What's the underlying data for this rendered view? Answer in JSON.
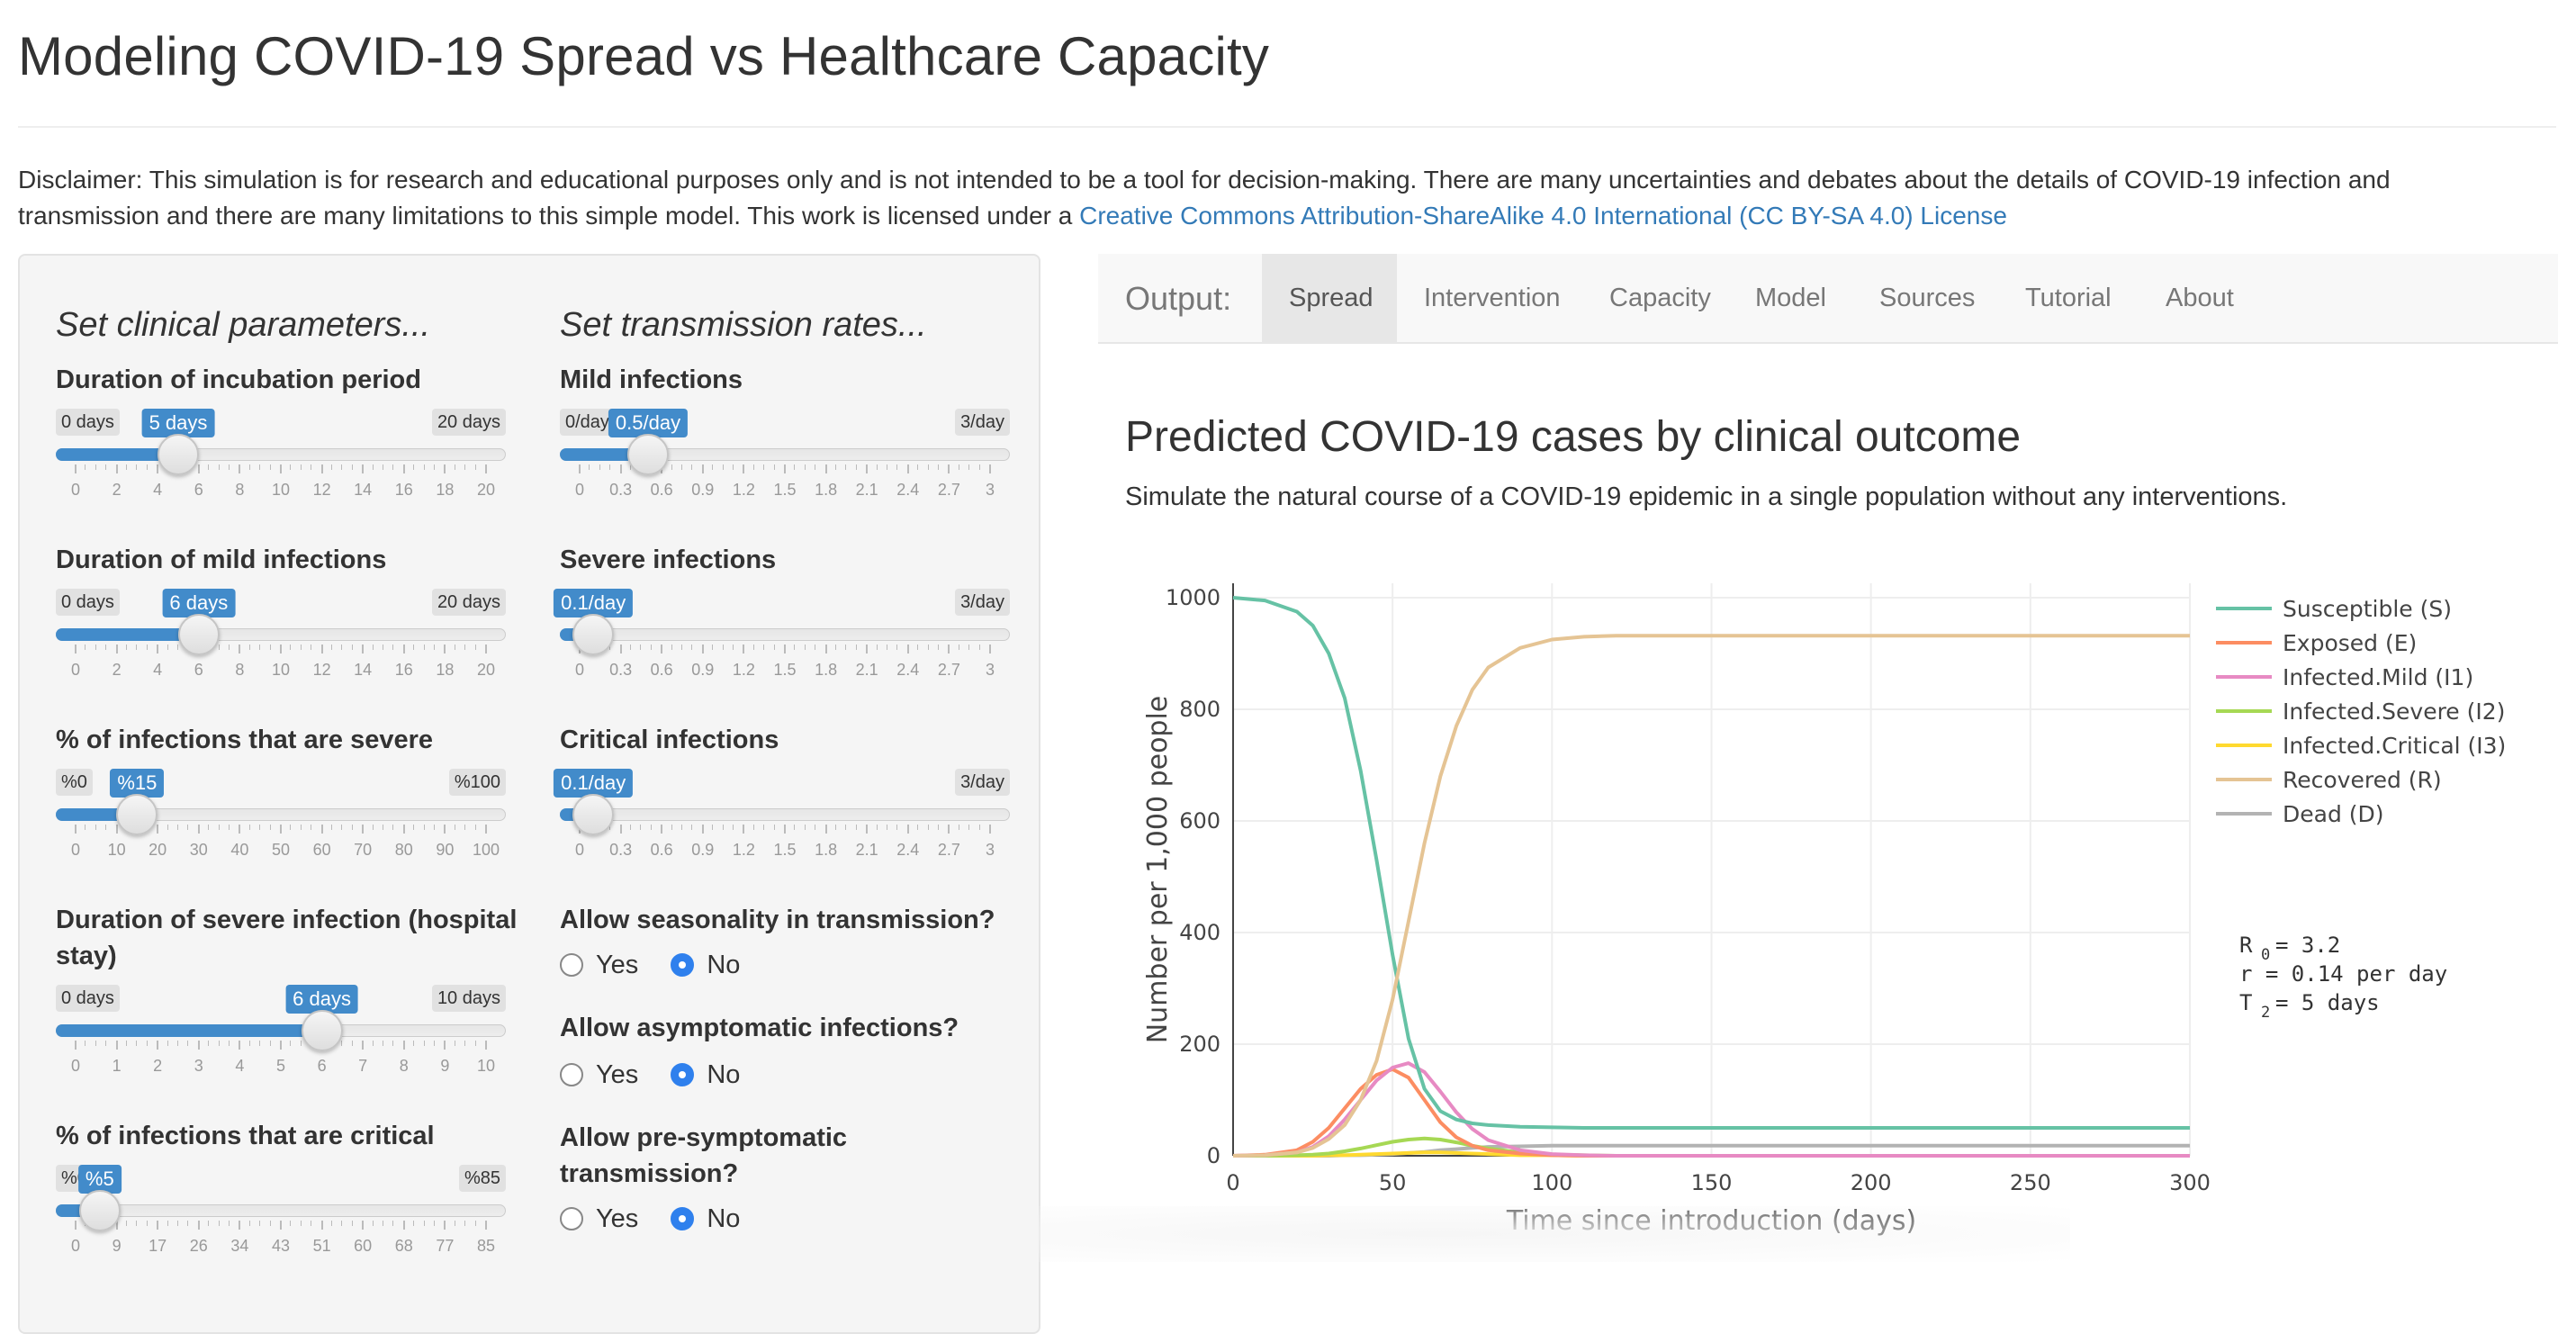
{
  "page": {
    "title": "Modeling COVID-19 Spread vs Healthcare Capacity",
    "disclaimer_text": "Disclaimer: This simulation is for research and educational purposes only and is not intended to be a tool for decision-making. There are many uncertainties and debates about the details of COVID-19 infection and transmission and there are many limitations to this simple model. This work is licensed under a ",
    "license_link": "Creative Commons Attribution-ShareAlike 4.0 International (CC BY-SA 4.0) License",
    "accent_color": "#428bca",
    "link_color": "#337ab7"
  },
  "clinical": {
    "heading": "Set clinical parameters...",
    "sliders": [
      {
        "label": "Duration of incubation period",
        "min_label": "0 days",
        "max_label": "20 days",
        "value_label": "5 days",
        "min": 0,
        "max": 20,
        "value": 5,
        "ticks": [
          "0",
          "2",
          "4",
          "6",
          "8",
          "10",
          "12",
          "14",
          "16",
          "18",
          "20"
        ]
      },
      {
        "label": "Duration of mild infections",
        "min_label": "0 days",
        "max_label": "20 days",
        "value_label": "6 days",
        "min": 0,
        "max": 20,
        "value": 6,
        "ticks": [
          "0",
          "2",
          "4",
          "6",
          "8",
          "10",
          "12",
          "14",
          "16",
          "18",
          "20"
        ]
      },
      {
        "label": "% of infections that are severe",
        "min_label": "%0",
        "max_label": "%100",
        "value_label": "%15",
        "min": 0,
        "max": 100,
        "value": 15,
        "ticks": [
          "0",
          "10",
          "20",
          "30",
          "40",
          "50",
          "60",
          "70",
          "80",
          "90",
          "100"
        ]
      },
      {
        "label": "Duration of severe infection (hospital stay)",
        "min_label": "0 days",
        "max_label": "10 days",
        "value_label": "6 days",
        "min": 0,
        "max": 10,
        "value": 6,
        "ticks": [
          "0",
          "1",
          "2",
          "3",
          "4",
          "5",
          "6",
          "7",
          "8",
          "9",
          "10"
        ]
      },
      {
        "label": "% of infections that are critical",
        "min_label": "%0",
        "max_label": "%85",
        "value_label": "%5",
        "min": 0,
        "max": 85,
        "value": 5,
        "ticks": [
          "0",
          "9",
          "17",
          "26",
          "34",
          "43",
          "51",
          "60",
          "68",
          "77",
          "85"
        ]
      }
    ]
  },
  "transmission": {
    "heading": "Set transmission rates...",
    "sliders": [
      {
        "label": "Mild infections",
        "min_label": "0/day",
        "max_label": "3/day",
        "value_label": "0.5/day",
        "min": 0,
        "max": 3,
        "value": 0.5,
        "ticks": [
          "0",
          "0.3",
          "0.6",
          "0.9",
          "1.2",
          "1.5",
          "1.8",
          "2.1",
          "2.4",
          "2.7",
          "3"
        ]
      },
      {
        "label": "Severe infections",
        "min_label": "0/day",
        "max_label": "3/day",
        "value_label": "0.1/day",
        "min": 0,
        "max": 3,
        "value": 0.1,
        "ticks": [
          "0",
          "0.3",
          "0.6",
          "0.9",
          "1.2",
          "1.5",
          "1.8",
          "2.1",
          "2.4",
          "2.7",
          "3"
        ]
      },
      {
        "label": "Critical infections",
        "min_label": "0/day",
        "max_label": "3/day",
        "value_label": "0.1/day",
        "min": 0,
        "max": 3,
        "value": 0.1,
        "ticks": [
          "0",
          "0.3",
          "0.6",
          "0.9",
          "1.2",
          "1.5",
          "1.8",
          "2.1",
          "2.4",
          "2.7",
          "3"
        ]
      }
    ],
    "radios": [
      {
        "label": "Allow seasonality in transmission?",
        "yes": "Yes",
        "no": "No",
        "selected": "No"
      },
      {
        "label": "Allow asymptomatic infections?",
        "yes": "Yes",
        "no": "No",
        "selected": "No"
      },
      {
        "label_line1": "Allow pre-symptomatic",
        "label_line2": "transmission?",
        "yes": "Yes",
        "no": "No",
        "selected": "No"
      }
    ]
  },
  "output": {
    "brand": "Output:",
    "tabs": [
      "Spread",
      "Intervention",
      "Capacity",
      "Model",
      "Sources",
      "Tutorial",
      "About"
    ],
    "active_tab": "Spread",
    "heading": "Predicted COVID-19 cases by clinical outcome",
    "subtitle": "Simulate the natural course of a COVID-19 epidemic in a single population without any interventions."
  },
  "chart_data": {
    "type": "line",
    "xlabel": "Time since introduction (days)",
    "ylabel": "Number per 1,000 people",
    "xlim": [
      0,
      300
    ],
    "ylim": [
      0,
      1000
    ],
    "x_ticks": [
      0,
      50,
      100,
      150,
      200,
      250,
      300
    ],
    "y_ticks": [
      0,
      200,
      400,
      600,
      800,
      1000
    ],
    "grid": true,
    "legend_position": "right",
    "x": [
      0,
      10,
      20,
      25,
      30,
      35,
      40,
      45,
      50,
      55,
      60,
      65,
      70,
      75,
      80,
      90,
      100,
      110,
      120,
      150,
      200,
      250,
      300
    ],
    "series": [
      {
        "name": "Susceptible (S)",
        "color": "#66c2a5",
        "values": [
          1000,
          995,
          975,
          950,
          900,
          820,
          690,
          530,
          360,
          210,
          120,
          80,
          65,
          58,
          55,
          52,
          51,
          50,
          50,
          50,
          50,
          50,
          50
        ]
      },
      {
        "name": "Exposed (E)",
        "color": "#fc8d62",
        "values": [
          0,
          2,
          10,
          25,
          50,
          85,
          120,
          145,
          155,
          140,
          100,
          60,
          33,
          18,
          10,
          4,
          1,
          0,
          0,
          0,
          0,
          0,
          0
        ]
      },
      {
        "name": "Infected.Mild (I1)",
        "color": "#e78ac3",
        "values": [
          0,
          1,
          6,
          16,
          35,
          65,
          100,
          135,
          158,
          166,
          150,
          115,
          78,
          48,
          28,
          10,
          3,
          1,
          0,
          0,
          0,
          0,
          0
        ]
      },
      {
        "name": "Infected.Severe (I2)",
        "color": "#a6d854",
        "values": [
          0,
          0,
          1,
          2,
          4,
          8,
          13,
          19,
          25,
          29,
          31,
          29,
          24,
          18,
          13,
          6,
          2,
          1,
          0,
          0,
          0,
          0,
          0
        ]
      },
      {
        "name": "Infected.Critical (I3)",
        "color": "#ffd92f",
        "values": [
          0,
          0,
          0,
          0,
          1,
          1,
          2,
          3,
          4,
          5,
          6,
          6,
          5,
          4,
          3,
          1,
          1,
          0,
          0,
          0,
          0,
          0,
          0
        ]
      },
      {
        "name": "Recovered (R)",
        "color": "#e5c494",
        "values": [
          0,
          1,
          6,
          14,
          30,
          55,
          100,
          170,
          280,
          420,
          560,
          680,
          770,
          835,
          875,
          910,
          925,
          930,
          932,
          932,
          932,
          932,
          932
        ]
      },
      {
        "name": "Dead (D)",
        "color": "#b3b3b3",
        "values": [
          0,
          0,
          0,
          0,
          0,
          1,
          1,
          2,
          3,
          5,
          7,
          10,
          12,
          14,
          16,
          17,
          18,
          18,
          18,
          18,
          18,
          18,
          18
        ]
      }
    ],
    "annotation": {
      "r0_label": "R",
      "r0_sub": "0",
      "r0_value": " = 3.2",
      "r_line": "r = 0.14  per day",
      "t2_label": "T",
      "t2_sub": "2",
      "t2_value": " =   5  days"
    }
  }
}
